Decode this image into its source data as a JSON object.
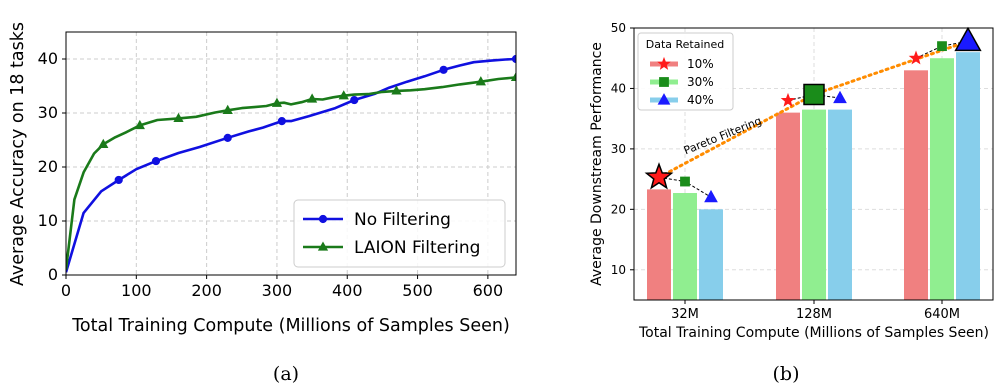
{
  "chart_data": [
    {
      "type": "line",
      "caption": "(a)",
      "xlabel": "Total Training Compute (Millions of Samples Seen)",
      "ylabel": "Average Accuracy on 18 tasks",
      "xlim": [
        0,
        640
      ],
      "ylim": [
        0,
        45
      ],
      "xticks": [
        0,
        100,
        200,
        300,
        400,
        500,
        600
      ],
      "yticks": [
        0,
        10,
        20,
        30,
        40
      ],
      "grid": true,
      "legend": "bottom-right",
      "series": [
        {
          "name": "No Filtering",
          "color": "#1010e0",
          "marker": "circle",
          "x": [
            0,
            25,
            50,
            75,
            100,
            128,
            160,
            190,
            230,
            260,
            280,
            307,
            320,
            345,
            383,
            410,
            440,
            460,
            485,
            510,
            537,
            560,
            580,
            605,
            625,
            640
          ],
          "y": [
            0.5,
            11.5,
            15.5,
            17.6,
            19.6,
            21.1,
            22.6,
            23.7,
            25.4,
            26.6,
            27.3,
            28.5,
            28.5,
            29.4,
            30.9,
            32.4,
            33.6,
            34.7,
            35.8,
            36.8,
            38.0,
            38.8,
            39.4,
            39.7,
            39.9,
            40.0
          ]
        },
        {
          "name": "LAION Filtering",
          "color": "#1a7a1a",
          "marker": "triangle",
          "x": [
            0,
            12,
            25,
            40,
            53,
            70,
            85,
            105,
            130,
            160,
            185,
            212,
            230,
            250,
            268,
            285,
            300,
            310,
            320,
            335,
            350,
            365,
            380,
            395,
            410,
            430,
            450,
            470,
            490,
            510,
            535,
            560,
            590,
            615,
            640
          ],
          "y": [
            1,
            14,
            19,
            22.5,
            24.2,
            25.5,
            26.4,
            27.7,
            28.7,
            29.0,
            29.3,
            30.1,
            30.5,
            30.9,
            31.1,
            31.3,
            31.8,
            31.9,
            31.6,
            32.0,
            32.6,
            32.5,
            32.9,
            33.2,
            33.4,
            33.5,
            33.9,
            34.1,
            34.2,
            34.4,
            34.8,
            35.3,
            35.8,
            36.3,
            36.6
          ]
        }
      ]
    },
    {
      "type": "bar",
      "caption": "(b)",
      "xlabel": "Total Training Compute (Millions of Samples Seen)",
      "ylabel": "Average Downstream Performance",
      "categories": [
        "32M",
        "128M",
        "640M"
      ],
      "ylim": [
        5,
        50
      ],
      "yticks": [
        10,
        20,
        30,
        40,
        50
      ],
      "grid": true,
      "legend": "top-left",
      "legend_title": "Data Retained",
      "series": [
        {
          "name": "10%",
          "color": "#f08080",
          "marker": "star",
          "marker_color": "#ff1a1a",
          "values": [
            23.3,
            36.0,
            43.0
          ],
          "marker_values": [
            25.3,
            38.0,
            45.0
          ]
        },
        {
          "name": "30%",
          "color": "#90ee90",
          "marker": "square",
          "marker_color": "#1a8c1a",
          "values": [
            22.7,
            36.5,
            45.0
          ],
          "marker_values": [
            24.6,
            39.0,
            47.0
          ]
        },
        {
          "name": "40%",
          "color": "#87ceeb",
          "marker": "triangle",
          "marker_color": "#1a1aff",
          "values": [
            20.0,
            36.5,
            46.0
          ],
          "marker_values": [
            22.0,
            38.4,
            47.8
          ]
        }
      ],
      "highlight": {
        "32M": "10%",
        "128M": "30%",
        "640M": "40%"
      },
      "annotation": "Pareto Filtering",
      "annotation_color": "#ff8c00"
    }
  ]
}
